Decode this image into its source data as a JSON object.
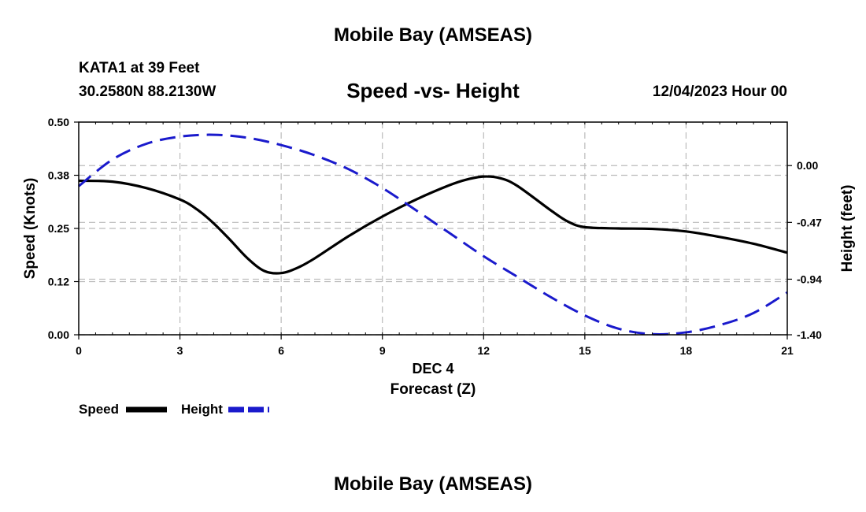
{
  "header": {
    "title": "Mobile Bay (AMSEAS)",
    "station": "KATA1 at 39 Feet",
    "location": "30.2580N  88.2130W",
    "subtitle": "Speed -vs- Height",
    "datetime": "12/04/2023 Hour 00"
  },
  "footer": {
    "title": "Mobile Bay (AMSEAS)"
  },
  "legend": {
    "speed_label": "Speed",
    "height_label": "Height"
  },
  "colors": {
    "speed": "#000000",
    "height": "#1a1acc",
    "grid": "#bbbbbb"
  },
  "chart_data": {
    "type": "line",
    "title": "Speed -vs- Height",
    "xlabel_date": "DEC 4",
    "xlabel": "Forecast (Z)",
    "ylabel": "Speed (Knots)",
    "y2label": "Height (feet)",
    "xlim": [
      0,
      21
    ],
    "ylim": [
      0,
      0.5
    ],
    "y2lim": [
      -1.4,
      0.36
    ],
    "x_ticks": [
      0,
      3,
      6,
      9,
      12,
      15,
      18,
      21
    ],
    "x_tick_labels": [
      "0",
      "3",
      "6",
      "9",
      "12",
      "15",
      "18",
      "21"
    ],
    "y_ticks": [
      0.0,
      0.125,
      0.25,
      0.375,
      0.5
    ],
    "y_tick_labels": [
      "0.00",
      "0.12",
      "0.25",
      "0.38",
      "0.50"
    ],
    "y2_ticks": [
      0.0,
      -0.47,
      -0.94,
      -1.4
    ],
    "y2_tick_labels": [
      "0.00",
      "-0.47",
      "-0.94",
      "-1.40"
    ],
    "series": [
      {
        "name": "Speed",
        "axis": "left",
        "style": "solid",
        "x": [
          0,
          1,
          2,
          3,
          3.5,
          4,
          4.5,
          5,
          5.5,
          6,
          6.5,
          7,
          8,
          9,
          10,
          11,
          11.5,
          12,
          12.5,
          13,
          14,
          14.5,
          15,
          16,
          17,
          18,
          19,
          20,
          21
        ],
        "values": [
          0.362,
          0.36,
          0.345,
          0.318,
          0.295,
          0.262,
          0.222,
          0.18,
          0.15,
          0.145,
          0.158,
          0.18,
          0.232,
          0.278,
          0.318,
          0.352,
          0.365,
          0.372,
          0.368,
          0.35,
          0.292,
          0.266,
          0.253,
          0.25,
          0.249,
          0.243,
          0.23,
          0.214,
          0.193
        ]
      },
      {
        "name": "Height",
        "axis": "right",
        "style": "dashed",
        "x": [
          0,
          1,
          2,
          3,
          4,
          5,
          6,
          7,
          8,
          9,
          10,
          11,
          12,
          13,
          14,
          15,
          16,
          17,
          18,
          19,
          20,
          21
        ],
        "values": [
          -0.17,
          0.05,
          0.18,
          0.24,
          0.255,
          0.23,
          0.17,
          0.085,
          -0.03,
          -0.185,
          -0.37,
          -0.56,
          -0.75,
          -0.92,
          -1.09,
          -1.24,
          -1.35,
          -1.395,
          -1.38,
          -1.32,
          -1.22,
          -1.05
        ]
      }
    ]
  }
}
